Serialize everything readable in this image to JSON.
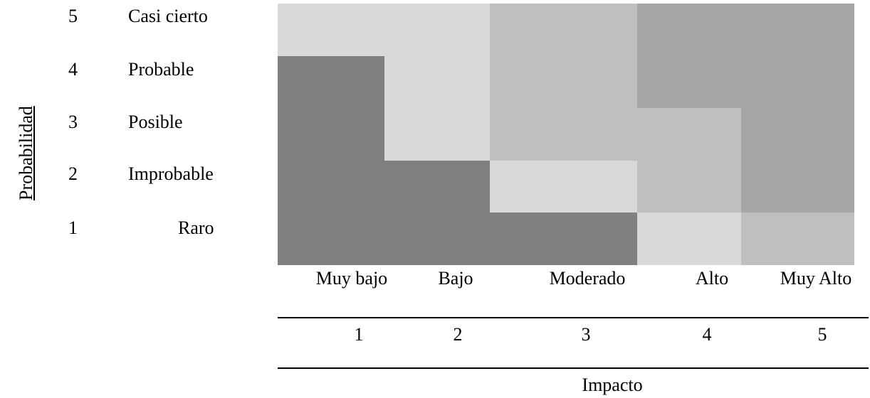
{
  "chart_data": {
    "type": "heatmap",
    "ylabel": "Probabilidad",
    "xlabel": "Impacto",
    "rows": [
      {
        "value": "5",
        "label": "Casi cierto"
      },
      {
        "value": "4",
        "label": "Probable"
      },
      {
        "value": "3",
        "label": "Posible"
      },
      {
        "value": "2",
        "label": "Improbable"
      },
      {
        "value": "1",
        "label": "Raro"
      }
    ],
    "columns": [
      {
        "value": "1",
        "label": "Muy bajo"
      },
      {
        "value": "2",
        "label": "Bajo"
      },
      {
        "value": "3",
        "label": "Moderado"
      },
      {
        "value": "4",
        "label": "Alto"
      },
      {
        "value": "5",
        "label": "Muy Alto"
      }
    ],
    "levels": {
      "1": "#808080",
      "2": "#d9d9d9",
      "3": "#bfbfbf",
      "4": "#a6a6a6"
    },
    "matrix": [
      [
        2,
        2,
        3,
        4,
        4
      ],
      [
        1,
        2,
        3,
        4,
        4
      ],
      [
        1,
        2,
        3,
        3,
        4
      ],
      [
        1,
        1,
        2,
        3,
        4
      ],
      [
        1,
        1,
        1,
        2,
        3
      ]
    ]
  }
}
